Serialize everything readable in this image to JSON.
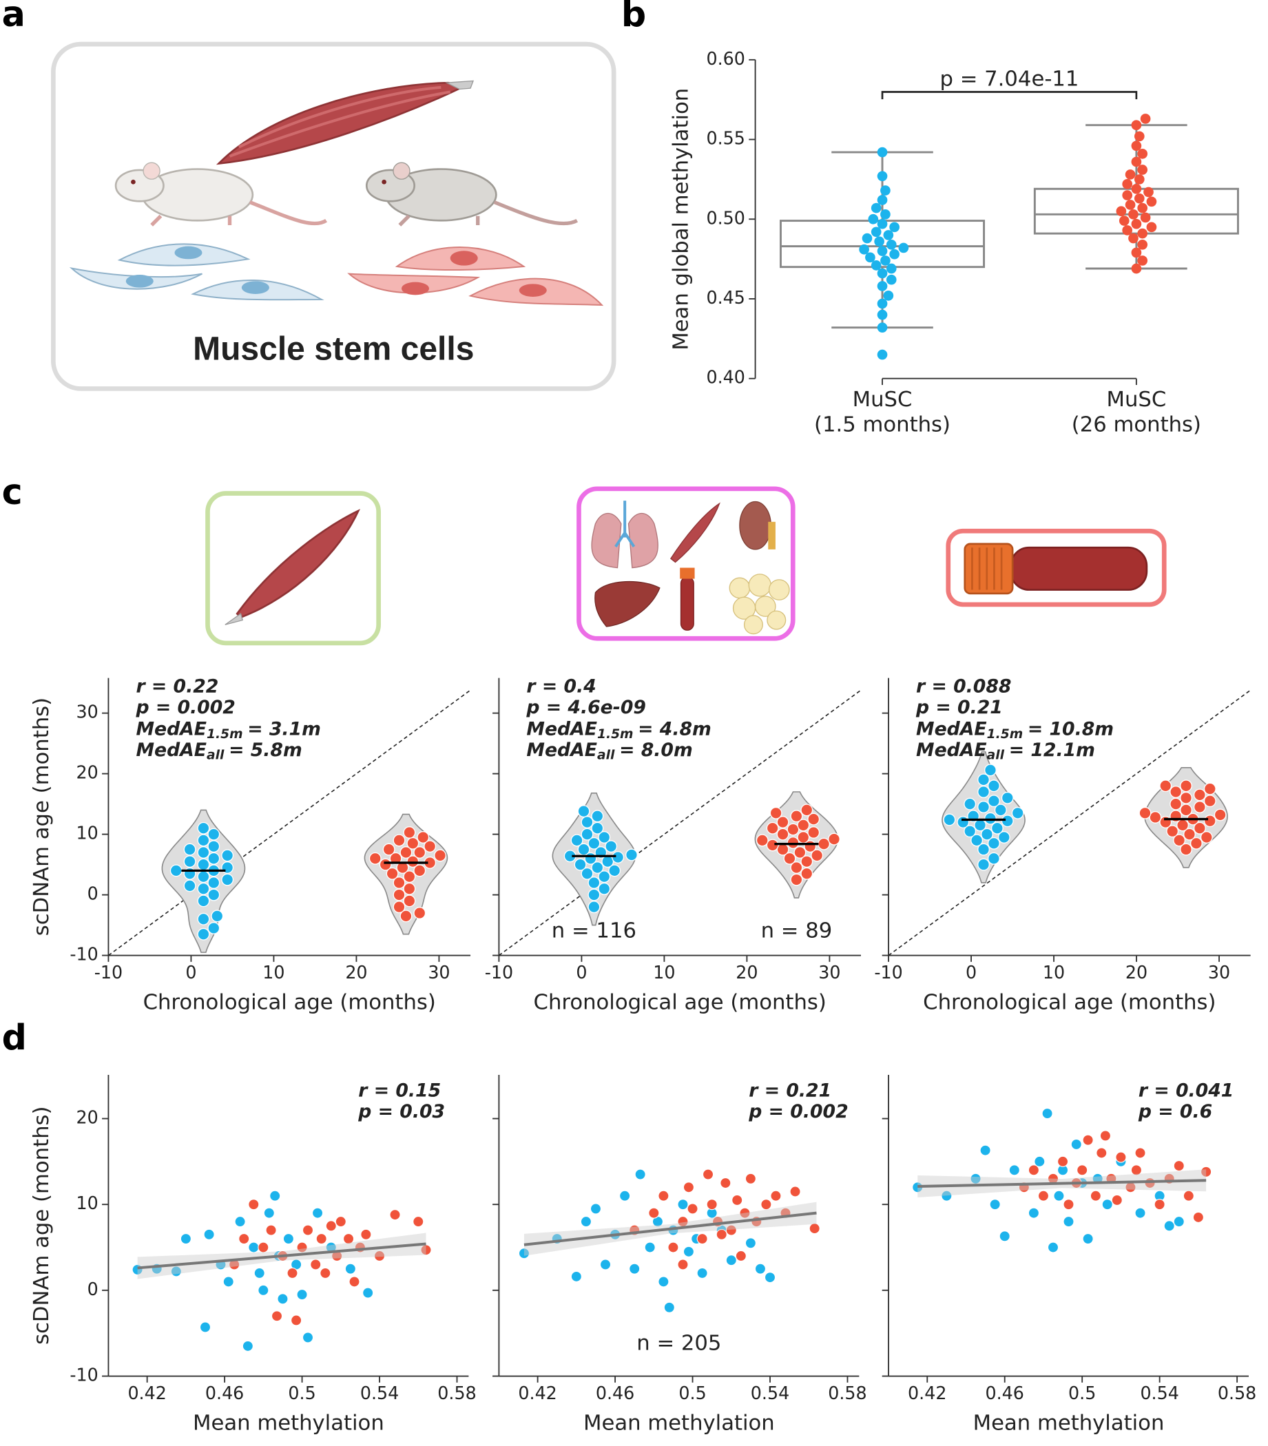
{
  "panel_labels": [
    "a",
    "b",
    "c",
    "d"
  ],
  "illustration": {
    "caption": "Muscle stem cells"
  },
  "chart_data": [
    {
      "type": "box",
      "ylabel": "Mean global methylation",
      "categories": [
        [
          "MuSC",
          "(1.5 months)"
        ],
        [
          "MuSC",
          "(26 months)"
        ]
      ],
      "ylim": [
        0.4,
        0.6
      ],
      "yticks": [
        {
          "value": 0.4,
          "label": "0.40"
        },
        0.45,
        {
          "value": 0.5,
          "label": "0.50"
        },
        0.55,
        {
          "value": 0.6,
          "label": "0.60"
        }
      ],
      "annotation": "p = 7.04e-11",
      "box_color": "#888888",
      "boxes": [
        {
          "whisker_low": 0.432,
          "q1": 0.47,
          "median": 0.483,
          "q3": 0.499,
          "whisker_high": 0.542
        },
        {
          "whisker_low": 0.469,
          "q1": 0.491,
          "median": 0.503,
          "q3": 0.519,
          "whisker_high": 0.559
        }
      ],
      "series": [
        {
          "color": "#1cb3ec",
          "values": [
            0.415,
            0.432,
            0.44,
            0.447,
            0.452,
            0.458,
            0.462,
            0.466,
            0.469,
            0.471,
            0.474,
            0.476,
            0.478,
            0.48,
            0.481,
            0.482,
            0.484,
            0.486,
            0.488,
            0.49,
            0.492,
            0.495,
            0.497,
            0.5,
            0.503,
            0.507,
            0.512,
            0.518,
            0.527,
            0.542
          ]
        },
        {
          "color": "#f0533a",
          "values": [
            0.469,
            0.474,
            0.479,
            0.484,
            0.488,
            0.491,
            0.493,
            0.495,
            0.497,
            0.499,
            0.501,
            0.503,
            0.505,
            0.507,
            0.509,
            0.511,
            0.513,
            0.515,
            0.517,
            0.519,
            0.522,
            0.525,
            0.528,
            0.531,
            0.536,
            0.541,
            0.546,
            0.552,
            0.559,
            0.563
          ]
        }
      ]
    },
    {
      "type": "violin",
      "xlabel": "Chronological age (months)",
      "ylabel": "scDNAm age (months)",
      "xlim": [
        -10,
        33.8
      ],
      "ylim": [
        -10,
        35.8
      ],
      "xticks": [
        -10,
        0,
        10,
        20,
        30
      ],
      "yticks": [
        -10,
        0,
        10,
        20,
        30
      ],
      "ytick_labels": true,
      "stats": [
        "r = 0.22",
        "p = 0.002"
      ],
      "medae": [
        {
          "name": "MedAE",
          "sub": "1.5m",
          "text": "= 3.1m"
        },
        {
          "name": "MedAE",
          "sub": "all",
          "text": "= 5.8m"
        }
      ],
      "series": [
        {
          "color": "#1cb3ec",
          "x": 1.5,
          "median": 4.0,
          "values": [
            -6.5,
            -5.5,
            -4,
            -3.5,
            -1,
            0,
            1,
            1.5,
            2,
            2.5,
            3,
            3.5,
            4,
            4,
            4.5,
            5,
            5.5,
            6,
            6.5,
            7,
            7.5,
            8,
            9,
            10,
            11
          ]
        },
        {
          "color": "#f0533a",
          "x": 26,
          "median": 5.3,
          "values": [
            -3.5,
            -3,
            -2,
            -1,
            0,
            1,
            2,
            3,
            3.5,
            4,
            4.5,
            5,
            5.3,
            5.5,
            6,
            6,
            6.5,
            7,
            7,
            7.5,
            8,
            8.5,
            9,
            9.5,
            10.3
          ]
        }
      ]
    },
    {
      "type": "violin",
      "xlabel": "Chronological age (months)",
      "xlim": [
        -10,
        33.8
      ],
      "ylim": [
        -10,
        35.8
      ],
      "xticks": [
        -10,
        0,
        10,
        20,
        30
      ],
      "yticks": [
        -10,
        0,
        10,
        20,
        30
      ],
      "ytick_labels": false,
      "stats": [
        "r = 0.4",
        "p = 4.6e-09"
      ],
      "medae": [
        {
          "name": "MedAE",
          "sub": "1.5m",
          "text": "= 4.8m"
        },
        {
          "name": "MedAE",
          "sub": "all",
          "text": "= 8.0m"
        }
      ],
      "n_labels": [
        "n = 116",
        "n = 89"
      ],
      "series": [
        {
          "color": "#1cb3ec",
          "x": 1.5,
          "median": 6.4,
          "values": [
            -2,
            0,
            1,
            2,
            3,
            3.5,
            4,
            4.5,
            5,
            5.5,
            6,
            6.2,
            6.4,
            6.6,
            7,
            7.5,
            8,
            8.5,
            9,
            9.5,
            10,
            11,
            12,
            13,
            13.8
          ]
        },
        {
          "color": "#f0533a",
          "x": 26,
          "median": 8.4,
          "values": [
            2.5,
            3.5,
            4.5,
            5.5,
            6,
            6.5,
            7,
            7.5,
            8,
            8.2,
            8.4,
            8.6,
            9,
            9.2,
            9.5,
            10,
            10.3,
            10.8,
            11,
            11.5,
            12,
            12.5,
            13,
            13.5,
            14
          ]
        }
      ]
    },
    {
      "type": "violin",
      "xlabel": "Chronological age (months)",
      "xlim": [
        -10,
        33.8
      ],
      "ylim": [
        -10,
        35.8
      ],
      "xticks": [
        -10,
        0,
        10,
        20,
        30
      ],
      "yticks": [
        -10,
        0,
        10,
        20,
        30
      ],
      "ytick_labels": false,
      "stats": [
        "r = 0.088",
        "p = 0.21"
      ],
      "medae": [
        {
          "name": "MedAE",
          "sub": "1.5m",
          "text": "= 10.8m"
        },
        {
          "name": "MedAE",
          "sub": "all",
          "text": "= 12.1m"
        }
      ],
      "series": [
        {
          "color": "#1cb3ec",
          "x": 1.5,
          "median": 12.4,
          "values": [
            5,
            6,
            7.5,
            8.5,
            9,
            9.5,
            10,
            10.5,
            11,
            11.5,
            12,
            12.2,
            12.4,
            12.6,
            13,
            13.5,
            14,
            14.5,
            15,
            15.5,
            16,
            17,
            18,
            19,
            20.6
          ]
        },
        {
          "color": "#f0533a",
          "x": 26,
          "median": 12.5,
          "values": [
            7.5,
            8.5,
            9,
            9.5,
            10,
            10.5,
            11,
            11.5,
            12,
            12.2,
            12.5,
            12.8,
            13,
            13.2,
            13.5,
            14,
            14.5,
            15,
            15.5,
            16,
            16.5,
            17,
            17.5,
            18,
            18
          ]
        }
      ]
    },
    {
      "type": "scatter",
      "xlabel": "Mean methylation",
      "ylabel": "scDNAm age (months)",
      "xlim": [
        0.4,
        0.586
      ],
      "ylim": [
        -10,
        25.1
      ],
      "xticks": [
        0.42,
        0.46,
        0.5,
        0.54,
        0.58
      ],
      "yticks": [
        -10,
        0,
        10,
        20
      ],
      "ytick_labels": true,
      "stats": [
        "r = 0.15",
        "p = 0.03"
      ],
      "fit": {
        "color": "#777777",
        "x": [
          0.415,
          0.564
        ],
        "y": [
          2.6,
          5.4
        ]
      },
      "series": [
        {
          "color": "#1cb3ec",
          "x": [
            0.415,
            0.425,
            0.435,
            0.44,
            0.45,
            0.452,
            0.458,
            0.462,
            0.468,
            0.472,
            0.475,
            0.478,
            0.48,
            0.483,
            0.486,
            0.488,
            0.49,
            0.493,
            0.497,
            0.5,
            0.503,
            0.508,
            0.515,
            0.525,
            0.534
          ],
          "y": [
            2.4,
            2.5,
            2.2,
            6,
            -4.3,
            6.5,
            3,
            1,
            8,
            -6.5,
            5,
            2,
            0,
            9,
            11,
            4,
            -1,
            6,
            3,
            -0.5,
            -5.5,
            9,
            5,
            2.5,
            -0.3
          ]
        },
        {
          "color": "#f0533a",
          "x": [
            0.465,
            0.47,
            0.475,
            0.48,
            0.484,
            0.487,
            0.49,
            0.495,
            0.497,
            0.5,
            0.503,
            0.507,
            0.51,
            0.515,
            0.518,
            0.52,
            0.524,
            0.527,
            0.53,
            0.533,
            0.54,
            0.548,
            0.56,
            0.564,
            0.512
          ],
          "y": [
            3,
            6,
            10,
            5,
            7,
            -3,
            4,
            2,
            -3.5,
            5,
            7,
            3,
            6,
            7.5,
            4,
            8,
            6,
            1,
            5,
            6.5,
            4,
            8.8,
            8,
            4.7,
            2
          ]
        }
      ]
    },
    {
      "type": "scatter",
      "xlabel": "Mean methylation",
      "xlim": [
        0.4,
        0.586
      ],
      "ylim": [
        -10,
        25.1
      ],
      "xticks": [
        0.42,
        0.46,
        0.5,
        0.54,
        0.58
      ],
      "yticks": [
        -10,
        0,
        10,
        20
      ],
      "ytick_labels": false,
      "stats": [
        "r = 0.21",
        "p = 0.002"
      ],
      "n_label": "n = 205",
      "fit": {
        "color": "#777777",
        "x": [
          0.413,
          0.564
        ],
        "y": [
          5.3,
          9.0
        ]
      },
      "series": [
        {
          "color": "#1cb3ec",
          "x": [
            0.413,
            0.43,
            0.44,
            0.445,
            0.45,
            0.455,
            0.46,
            0.465,
            0.47,
            0.473,
            0.478,
            0.482,
            0.485,
            0.488,
            0.49,
            0.495,
            0.498,
            0.502,
            0.505,
            0.51,
            0.515,
            0.52,
            0.53,
            0.535,
            0.54
          ],
          "y": [
            4.3,
            6,
            1.6,
            8,
            9.5,
            3,
            6.5,
            11,
            2.5,
            13.5,
            5,
            8,
            1,
            -2,
            7,
            10,
            4.5,
            6,
            2,
            9,
            7,
            3.5,
            5.5,
            2.5,
            1.5
          ]
        },
        {
          "color": "#f0533a",
          "x": [
            0.47,
            0.48,
            0.485,
            0.49,
            0.495,
            0.498,
            0.5,
            0.505,
            0.508,
            0.51,
            0.513,
            0.517,
            0.52,
            0.523,
            0.527,
            0.53,
            0.533,
            0.538,
            0.543,
            0.548,
            0.553,
            0.563,
            0.525,
            0.515,
            0.495
          ],
          "y": [
            7,
            9,
            11,
            5,
            8,
            12,
            9.5,
            6,
            13.5,
            10,
            8,
            12.5,
            7,
            10.5,
            9,
            13,
            8,
            10,
            11,
            9,
            11.5,
            7.2,
            4,
            6.5,
            3
          ]
        }
      ]
    },
    {
      "type": "scatter",
      "xlabel": "Mean methylation",
      "xlim": [
        0.4,
        0.586
      ],
      "ylim": [
        -10,
        25.1
      ],
      "xticks": [
        0.42,
        0.46,
        0.5,
        0.54,
        0.58
      ],
      "yticks": [
        -10,
        0,
        10,
        20
      ],
      "ytick_labels": false,
      "stats": [
        "r = 0.041",
        "p = 0.6"
      ],
      "fit": {
        "color": "#777777",
        "x": [
          0.415,
          0.564
        ],
        "y": [
          12.1,
          12.8
        ]
      },
      "series": [
        {
          "color": "#1cb3ec",
          "x": [
            0.415,
            0.43,
            0.445,
            0.45,
            0.455,
            0.46,
            0.465,
            0.47,
            0.475,
            0.478,
            0.482,
            0.485,
            0.488,
            0.49,
            0.493,
            0.497,
            0.5,
            0.503,
            0.508,
            0.513,
            0.52,
            0.53,
            0.54,
            0.545,
            0.55
          ],
          "y": [
            12,
            11,
            13,
            16.3,
            10,
            6.3,
            14,
            12,
            9,
            15,
            20.6,
            5,
            11,
            14,
            8,
            17,
            12.5,
            6,
            13,
            10,
            15,
            9,
            11,
            7.5,
            8
          ]
        },
        {
          "color": "#f0533a",
          "x": [
            0.47,
            0.475,
            0.48,
            0.485,
            0.49,
            0.493,
            0.497,
            0.5,
            0.503,
            0.507,
            0.51,
            0.512,
            0.515,
            0.518,
            0.52,
            0.525,
            0.528,
            0.53,
            0.535,
            0.54,
            0.545,
            0.55,
            0.555,
            0.56,
            0.564
          ],
          "y": [
            12,
            14,
            11,
            13,
            15,
            10,
            12.5,
            14,
            17.5,
            11,
            16,
            18,
            13,
            10.5,
            15.5,
            12,
            14,
            16,
            12.5,
            10,
            13,
            14.5,
            11,
            8.5,
            13.8
          ]
        }
      ]
    }
  ]
}
